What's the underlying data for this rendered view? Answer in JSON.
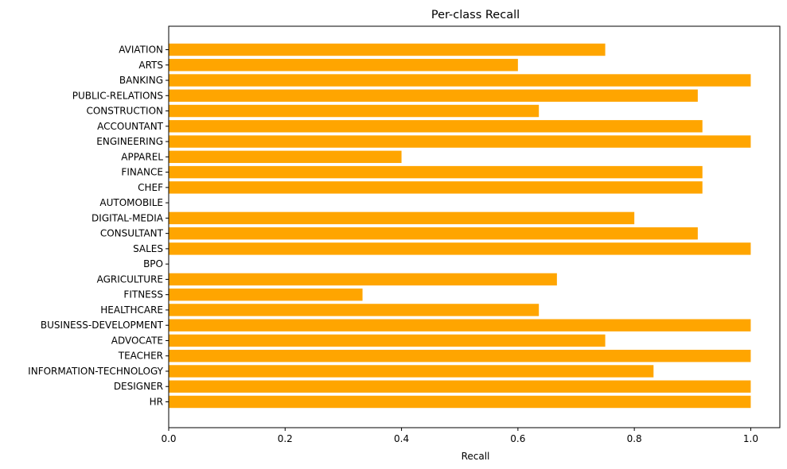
{
  "chart_data": {
    "type": "bar",
    "orientation": "horizontal",
    "title": "Per-class Recall",
    "xlabel": "Recall",
    "ylabel": "",
    "xlim": [
      0,
      1.05
    ],
    "xticks": [
      0.0,
      0.2,
      0.4,
      0.6,
      0.8,
      1.0
    ],
    "xtick_labels": [
      "0.0",
      "0.2",
      "0.4",
      "0.6",
      "0.8",
      "1.0"
    ],
    "grid": false,
    "legend": "none",
    "bar_color": "#ffa500",
    "categories": [
      "AVIATION",
      "ARTS",
      "BANKING",
      "PUBLIC-RELATIONS",
      "CONSTRUCTION",
      "ACCOUNTANT",
      "ENGINEERING",
      "APPAREL",
      "FINANCE",
      "CHEF",
      "AUTOMOBILE",
      "DIGITAL-MEDIA",
      "CONSULTANT",
      "SALES",
      "BPO",
      "AGRICULTURE",
      "FITNESS",
      "HEALTHCARE",
      "BUSINESS-DEVELOPMENT",
      "ADVOCATE",
      "TEACHER",
      "INFORMATION-TECHNOLOGY",
      "DESIGNER",
      "HR"
    ],
    "values": [
      0.75,
      0.6,
      1.0,
      0.909,
      0.636,
      0.917,
      1.0,
      0.4,
      0.917,
      0.917,
      0.0,
      0.8,
      0.909,
      1.0,
      0.0,
      0.667,
      0.333,
      0.636,
      1.0,
      0.75,
      1.0,
      0.833,
      1.0,
      1.0
    ]
  }
}
